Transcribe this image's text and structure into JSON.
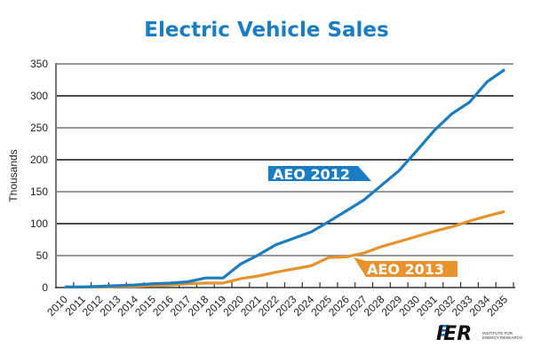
{
  "chart_data": {
    "type": "line",
    "title": "Electric Vehicle Sales",
    "xlabel": "",
    "ylabel": "Thousands",
    "ylim": [
      0,
      350
    ],
    "yticks": [
      0,
      50,
      100,
      150,
      200,
      250,
      300,
      350
    ],
    "grid": "horizontal",
    "x": [
      "2010",
      "2011",
      "2012",
      "2013",
      "2014",
      "2015",
      "2016",
      "2017",
      "2018",
      "2019",
      "2020",
      "2021",
      "2022",
      "2023",
      "2024",
      "2025",
      "2026",
      "2027",
      "2028",
      "2029",
      "2030",
      "2031",
      "2032",
      "2033",
      "2034",
      "2035"
    ],
    "series": [
      {
        "name": "AEO 2012",
        "color": "#1a7dc2",
        "values": [
          1,
          1,
          2,
          3,
          4,
          6,
          7,
          9,
          15,
          15,
          37,
          51,
          67,
          77,
          87,
          103,
          120,
          137,
          160,
          183,
          214,
          246,
          272,
          290,
          322,
          341
        ]
      },
      {
        "name": "AEO 2013",
        "color": "#e8922e",
        "values": [
          1,
          1,
          1,
          2,
          2,
          3,
          4,
          6,
          7,
          7,
          14,
          18,
          24,
          29,
          34,
          47,
          48,
          54,
          64,
          72,
          80,
          88,
          95,
          104,
          112,
          119
        ]
      }
    ],
    "legend": [
      {
        "label": "AEO 2012",
        "placement": "inline-above-line"
      },
      {
        "label": "AEO 2013",
        "placement": "inline-below-line"
      }
    ]
  },
  "title_color": "#1a7dc2",
  "logo": {
    "text": "IER",
    "tagline_line1": "INSTITUTE FOR",
    "tagline_line2": "ENERGY RESEARCH",
    "accent": "#1a7dc2"
  }
}
